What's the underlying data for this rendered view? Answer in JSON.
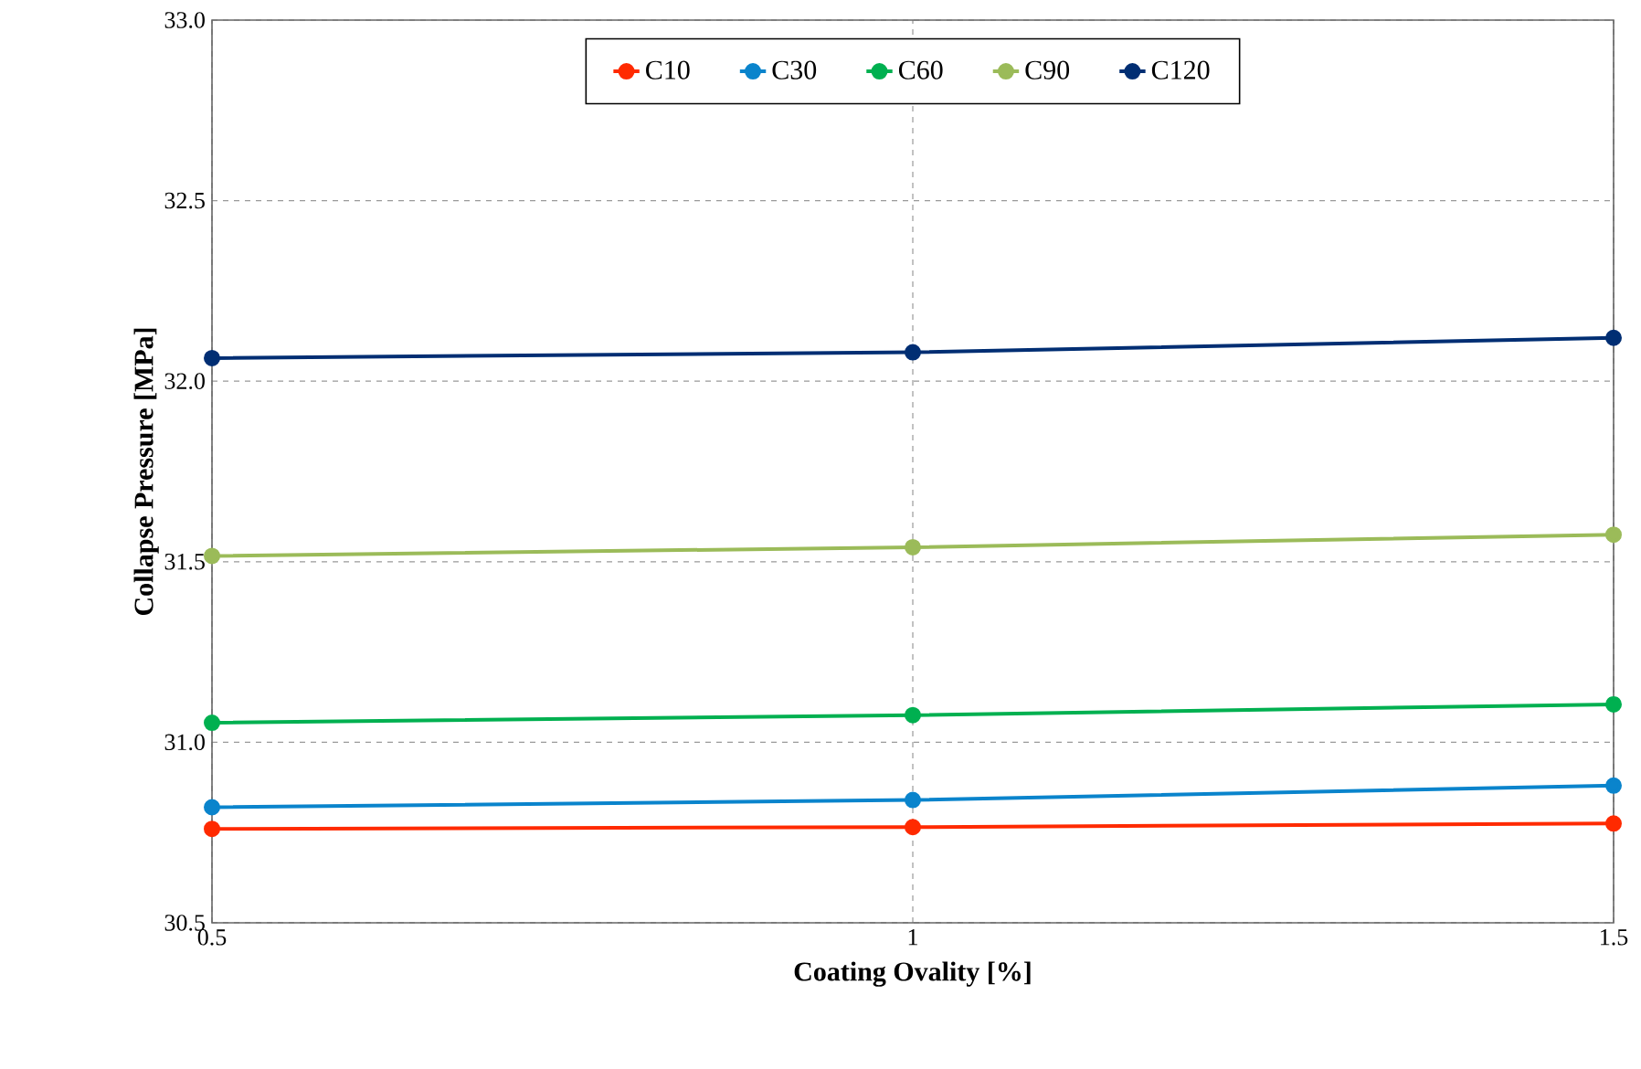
{
  "chart_data": {
    "type": "line",
    "xlabel": "Coating Ovality [%]",
    "ylabel": "Collapse Pressure [MPa]",
    "x": [
      0.5,
      1,
      1.5
    ],
    "xlim": [
      0.5,
      1.5
    ],
    "xticks": [
      0.5,
      1,
      1.5
    ],
    "ylim": [
      30.5,
      33.0
    ],
    "yticks": [
      {
        "value": 30.5,
        "label": "30.5"
      },
      {
        "value": 31.0,
        "label": "31.0"
      },
      {
        "value": 31.5,
        "label": "31.5"
      },
      {
        "value": 32.0,
        "label": "32.0"
      },
      {
        "value": 32.5,
        "label": "32.5"
      },
      {
        "value": 33.0,
        "label": "33.0"
      }
    ],
    "grid": true,
    "legend": "top",
    "marker": "circle",
    "line_style": "solid",
    "series": [
      {
        "name": "C10",
        "color": "#ff2a00",
        "values": [
          30.76,
          30.765,
          30.775
        ]
      },
      {
        "name": "C30",
        "color": "#0a84cc",
        "values": [
          30.82,
          30.84,
          30.88
        ]
      },
      {
        "name": "C60",
        "color": "#00b050",
        "values": [
          31.054,
          31.075,
          31.105
        ]
      },
      {
        "name": "C90",
        "color": "#9bbb59",
        "values": [
          31.516,
          31.54,
          31.575
        ]
      },
      {
        "name": "C120",
        "color": "#002e73",
        "values": [
          32.064,
          32.08,
          32.12
        ]
      }
    ]
  }
}
